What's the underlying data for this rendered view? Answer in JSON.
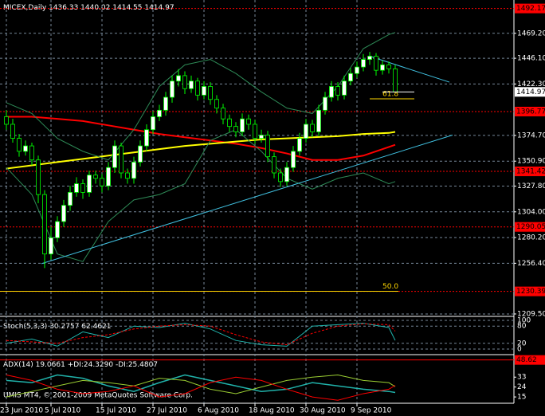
{
  "chart_data": {
    "type": "candlestick",
    "title": "MICEX,Daily",
    "candles": [
      [
        1392,
        1398,
        1380,
        1385
      ],
      [
        1385,
        1390,
        1368,
        1372
      ],
      [
        1372,
        1376,
        1355,
        1360
      ],
      [
        1360,
        1370,
        1356,
        1365
      ],
      [
        1365,
        1368,
        1347,
        1352
      ],
      [
        1352,
        1356,
        1312,
        1320
      ],
      [
        1320,
        1324,
        1252,
        1265
      ],
      [
        1265,
        1290,
        1260,
        1280
      ],
      [
        1280,
        1300,
        1276,
        1295
      ],
      [
        1295,
        1315,
        1290,
        1310
      ],
      [
        1310,
        1328,
        1305,
        1322
      ],
      [
        1322,
        1336,
        1318,
        1330
      ],
      [
        1330,
        1334,
        1316,
        1322
      ],
      [
        1322,
        1342,
        1318,
        1338
      ],
      [
        1338,
        1342,
        1330,
        1335
      ],
      [
        1335,
        1339,
        1322,
        1328
      ],
      [
        1328,
        1350,
        1324,
        1345
      ],
      [
        1345,
        1370,
        1340,
        1365
      ],
      [
        1365,
        1368,
        1335,
        1340
      ],
      [
        1340,
        1344,
        1330,
        1335
      ],
      [
        1335,
        1355,
        1330,
        1350
      ],
      [
        1350,
        1370,
        1346,
        1365
      ],
      [
        1365,
        1385,
        1360,
        1380
      ],
      [
        1380,
        1397,
        1376,
        1392
      ],
      [
        1392,
        1403,
        1388,
        1398
      ],
      [
        1398,
        1415,
        1393,
        1410
      ],
      [
        1410,
        1430,
        1405,
        1425
      ],
      [
        1425,
        1436,
        1420,
        1430
      ],
      [
        1430,
        1434,
        1413,
        1418
      ],
      [
        1418,
        1430,
        1414,
        1425
      ],
      [
        1425,
        1428,
        1407,
        1412
      ],
      [
        1412,
        1425,
        1408,
        1420
      ],
      [
        1420,
        1424,
        1403,
        1408
      ],
      [
        1408,
        1412,
        1395,
        1400
      ],
      [
        1400,
        1404,
        1385,
        1390
      ],
      [
        1390,
        1394,
        1378,
        1383
      ],
      [
        1383,
        1387,
        1373,
        1378
      ],
      [
        1378,
        1395,
        1374,
        1390
      ],
      [
        1390,
        1394,
        1380,
        1385
      ],
      [
        1385,
        1389,
        1367,
        1372
      ],
      [
        1372,
        1380,
        1368,
        1375
      ],
      [
        1375,
        1379,
        1350,
        1355
      ],
      [
        1355,
        1359,
        1335,
        1340
      ],
      [
        1340,
        1344,
        1327,
        1332
      ],
      [
        1332,
        1350,
        1328,
        1345
      ],
      [
        1345,
        1365,
        1341,
        1360
      ],
      [
        1360,
        1377,
        1356,
        1372
      ],
      [
        1372,
        1390,
        1368,
        1385
      ],
      [
        1385,
        1389,
        1373,
        1378
      ],
      [
        1378,
        1403,
        1374,
        1398
      ],
      [
        1398,
        1415,
        1394,
        1410
      ],
      [
        1410,
        1425,
        1406,
        1420
      ],
      [
        1420,
        1424,
        1407,
        1412
      ],
      [
        1412,
        1430,
        1408,
        1425
      ],
      [
        1425,
        1437,
        1421,
        1432
      ],
      [
        1432,
        1443,
        1428,
        1438
      ],
      [
        1438,
        1450,
        1434,
        1445
      ],
      [
        1445,
        1452,
        1440,
        1448
      ],
      [
        1448,
        1451,
        1430,
        1435
      ],
      [
        1435,
        1444,
        1431,
        1440
      ],
      [
        1440,
        1443,
        1432,
        1436.33
      ],
      [
        1436.33,
        1440.02,
        1414.55,
        1414.97
      ]
    ],
    "ylim": [
      1208,
      1500
    ],
    "yticks": [
      {
        "value": 1469.2,
        "label": "1469.20"
      },
      {
        "value": 1446.1,
        "label": "1446.10"
      },
      {
        "value": 1422.3,
        "label": "1422.30"
      },
      {
        "value": 1374.7,
        "label": "1374.70"
      },
      {
        "value": 1350.9,
        "label": "1350.90"
      },
      {
        "value": 1327.8,
        "label": "1327.80"
      },
      {
        "value": 1304,
        "label": "1304.00"
      },
      {
        "value": 1280.2,
        "label": "1280.20"
      },
      {
        "value": 1256.4,
        "label": "1256.40"
      },
      {
        "value": 1209.5,
        "label": "1209.50"
      }
    ],
    "grid": true,
    "date_labels": [
      {
        "index": 0,
        "label": "23 Jun 2010"
      },
      {
        "index": 7,
        "label": "5 Jul 2010"
      },
      {
        "index": 15,
        "label": "15 Jul 2010"
      },
      {
        "index": 23,
        "label": "27 Jul 2010"
      },
      {
        "index": 31,
        "label": "6 Aug 2010"
      },
      {
        "index": 39,
        "label": "18 Aug 2010"
      },
      {
        "index": 47,
        "label": "30 Aug 2010"
      },
      {
        "index": 55,
        "label": "9 Sep 2010"
      }
    ],
    "levels": [
      1492.17,
      1396.77,
      1341.42,
      1290.05,
      1230.39
    ],
    "level_color": "#ff0000",
    "fibo": [
      {
        "label": "61.8",
        "value": 1408.6
      },
      {
        "label": "50.0",
        "value": 1230.5
      }
    ],
    "fibo_color": "#ffd700",
    "lines": [
      {
        "color": "#ff0000",
        "x": [
          0,
          4,
          8,
          12,
          16,
          20,
          24,
          28,
          32,
          36,
          40,
          44,
          48,
          52,
          56,
          60,
          61
        ],
        "values": [
          1392,
          1392,
          1390,
          1388,
          1384,
          1380,
          1376,
          1373,
          1370,
          1367,
          1363,
          1358,
          1352,
          1352,
          1356,
          1364,
          1366
        ]
      },
      {
        "color": "#ffff00",
        "x": [
          0,
          4,
          8,
          12,
          16,
          20,
          24,
          28,
          32,
          36,
          40,
          44,
          48,
          52,
          56,
          60,
          61
        ],
        "values": [
          1344,
          1347,
          1350,
          1353,
          1356,
          1359,
          1362,
          1365,
          1367,
          1369,
          1371,
          1372,
          1373,
          1374,
          1376,
          1377,
          1378
        ]
      },
      {
        "color": "#2e8b57",
        "x": [
          0,
          4,
          8,
          12,
          16,
          20,
          24,
          28,
          32,
          36,
          40,
          44,
          48,
          52,
          56,
          60,
          61
        ],
        "values": [
          1405,
          1395,
          1372,
          1360,
          1352,
          1380,
          1420,
          1440,
          1445,
          1432,
          1415,
          1400,
          1395,
          1420,
          1455,
          1468,
          1470
        ]
      },
      {
        "color": "#2e8b57",
        "x": [
          0,
          4,
          8,
          12,
          16,
          20,
          24,
          28,
          32,
          36,
          40,
          44,
          48,
          52,
          56,
          60,
          61
        ],
        "values": [
          1345,
          1320,
          1265,
          1258,
          1295,
          1315,
          1320,
          1330,
          1370,
          1380,
          1360,
          1335,
          1325,
          1335,
          1340,
          1330,
          1332
        ]
      }
    ],
    "trendlines": [
      {
        "color": "#40c0e0",
        "x": [
          5.5,
          70
        ],
        "values": [
          1256,
          1375
        ]
      },
      {
        "color": "#40c0e0",
        "x": [
          57,
          69.5
        ],
        "values": [
          1448,
          1424
        ]
      }
    ],
    "last_price_color": "#ffffff",
    "stoch": {
      "title": "Stoch(5,3,3)",
      "ylim": [
        0,
        100
      ],
      "yticks": [
        0,
        20,
        80,
        100
      ],
      "x": [
        0,
        4,
        8,
        12,
        16,
        20,
        24,
        28,
        32,
        36,
        40,
        44,
        48,
        52,
        56,
        60,
        61
      ],
      "main": {
        "color": "#20b2aa",
        "values": [
          20,
          35,
          10,
          60,
          40,
          80,
          75,
          90,
          70,
          30,
          15,
          10,
          80,
          85,
          90,
          75,
          30.2757
        ]
      },
      "signal": {
        "color": "#ff0000",
        "values": [
          30,
          25,
          20,
          40,
          50,
          70,
          80,
          85,
          80,
          50,
          25,
          15,
          55,
          80,
          88,
          85,
          62.4621
        ]
      }
    },
    "adx": {
      "title": "ADX(14)",
      "ylim": [
        10,
        52
      ],
      "yticks": [
        15,
        24,
        33
      ],
      "level": 48.62,
      "header": [
        "19.0661",
        "+DI:24.3290",
        "-DI:25.4807"
      ],
      "x": [
        0,
        4,
        8,
        12,
        16,
        20,
        24,
        28,
        32,
        36,
        40,
        44,
        48,
        52,
        56,
        60,
        61
      ],
      "series": [
        {
          "color": "#20b2aa",
          "values": [
            30,
            28,
            35,
            32,
            25,
            20,
            28,
            35,
            30,
            25,
            20,
            22,
            28,
            25,
            22,
            20,
            19.0661
          ]
        },
        {
          "color": "#9acd32",
          "values": [
            15,
            20,
            25,
            30,
            28,
            25,
            32,
            30,
            22,
            18,
            24,
            30,
            33,
            35,
            30,
            28,
            24.329
          ]
        },
        {
          "color": "#ff0000",
          "values": [
            35,
            30,
            22,
            18,
            20,
            25,
            15,
            18,
            28,
            33,
            30,
            22,
            15,
            12,
            18,
            22,
            25.4807
          ]
        }
      ]
    },
    "copyright": "UMIS MT4, © 2001-2009 MetaQuotes Software Corp."
  }
}
